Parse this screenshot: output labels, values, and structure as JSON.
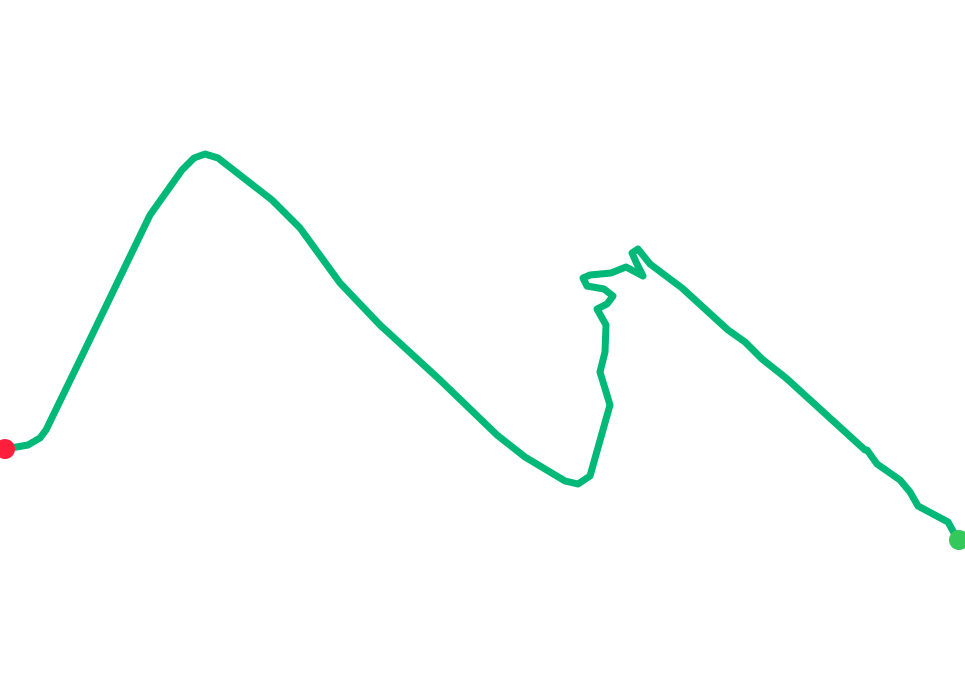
{
  "map": {
    "background_color": "#ffffff",
    "route": {
      "color": "#00b877"
    },
    "start_marker": {
      "icon": "start-point-marker",
      "color": "#ff1e3c"
    },
    "end_marker": {
      "icon": "end-point-marker",
      "color": "#34c759"
    }
  }
}
